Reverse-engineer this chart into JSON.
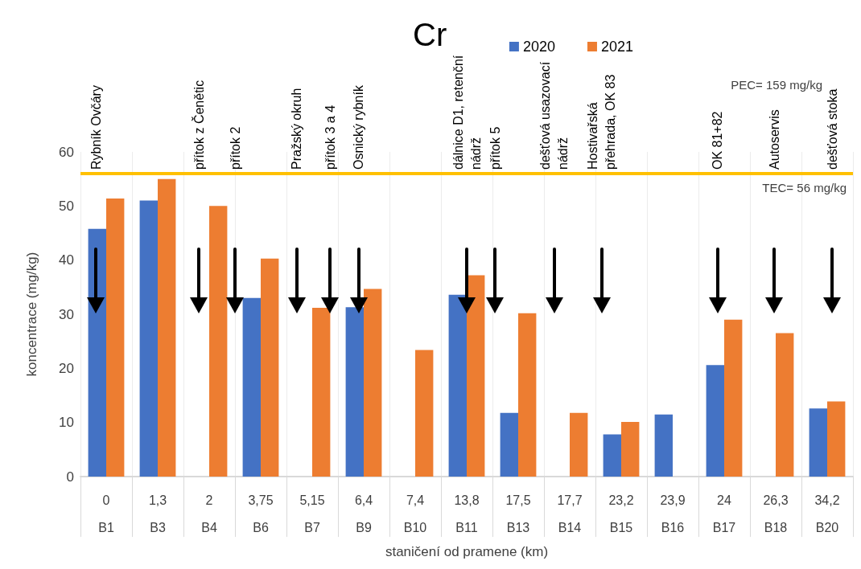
{
  "chart_data": {
    "type": "bar",
    "title": "Cr",
    "xlabel": "staničení od pramene (km)",
    "ylabel": "koncentrace (mg/kg)",
    "categories": [
      "0\nB1",
      "1,3\nB3",
      "2\nB4",
      "3,75\nB6",
      "5,15\nB7",
      "6,4\nB9",
      "7,4\nB10",
      "13,8\nB11",
      "17,5\nB13",
      "17,7\nB14",
      "23,2\nB15",
      "23,9\nB16",
      "24\nB17",
      "26,3\nB18",
      "34,2\nB20"
    ],
    "series": [
      {
        "name": "2020",
        "color": "#4472c4",
        "values": [
          45.8,
          51,
          null,
          33,
          null,
          31.3,
          null,
          33.6,
          11.8,
          null,
          7.8,
          11.5,
          20.6,
          null,
          12.6
        ]
      },
      {
        "name": "2021",
        "color": "#ed7d31",
        "values": [
          51.4,
          55,
          50,
          40.3,
          31.2,
          34.7,
          23.4,
          37.2,
          30.2,
          11.8,
          10.1,
          null,
          29,
          26.5,
          13.9
        ]
      }
    ],
    "ylim": [
      0,
      60
    ],
    "yticks": [
      0,
      10,
      20,
      30,
      40,
      50,
      60
    ],
    "grid": "x",
    "legend": "top right",
    "ref_lines": [
      {
        "axis": "y",
        "value": 56,
        "label": "TEC= 56 mg/kg",
        "color": "#ffc000"
      }
    ],
    "annotations": [
      "PEC= 159 mg/kg",
      "Rybník Ovčáry",
      "přítok z Čenětic",
      "přítok 2",
      "Pražský okruh",
      "přítok 3 a 4",
      "Osnický rybník",
      "dálnice D1, retenční\nnádrž",
      "přítok 5",
      "dešťová usazovací\nnádrž",
      "Hostivařská\npřehrada, OK 83",
      "OK 81+82",
      "Autoservis",
      "dešťová stoka"
    ]
  }
}
